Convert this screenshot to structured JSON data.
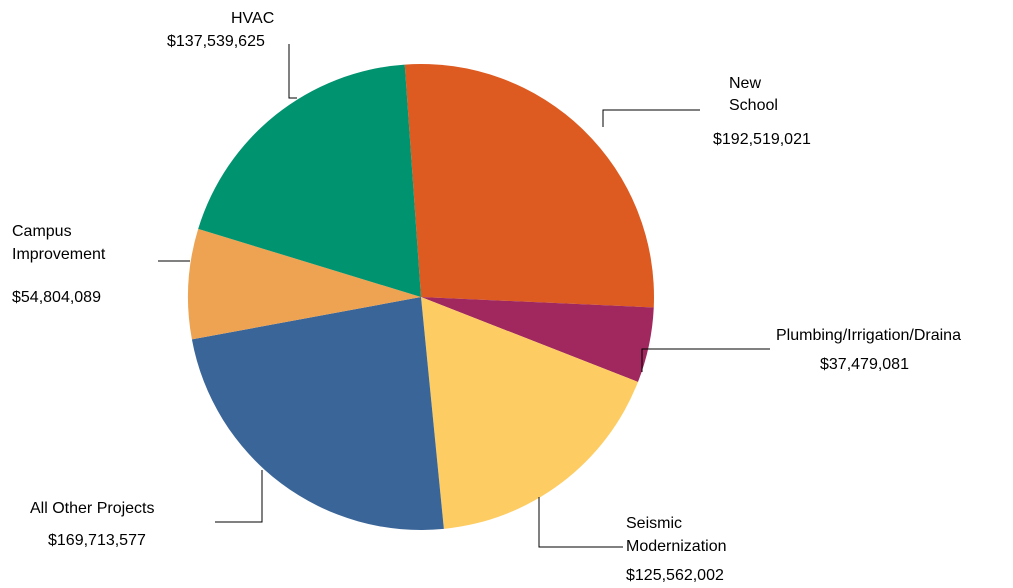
{
  "chart_data": {
    "type": "pie",
    "title": "",
    "slices": [
      {
        "label_lines": [
          "New",
          "School"
        ],
        "value_text": "$192,519,021",
        "value": 192519021,
        "color": "#DD5A20"
      },
      {
        "label_lines": [
          "Plumbing/Irrigation/Draina"
        ],
        "value_text": "$37,479,081",
        "value": 37479081,
        "color": "#A0285E"
      },
      {
        "label_lines": [
          "Seismic",
          "Modernization"
        ],
        "value_text": "$125,562,002",
        "value": 125562002,
        "color": "#FDCC62"
      },
      {
        "label_lines": [
          "All Other Projects"
        ],
        "value_text": "$169,713,577",
        "value": 169713577,
        "color": "#3A6599"
      },
      {
        "label_lines": [
          "Campus",
          "Improvement"
        ],
        "value_text": "$54,804,089",
        "value": 54804089,
        "color": "#EDA352"
      },
      {
        "label_lines": [
          "HVAC"
        ],
        "value_text": "$137,539,625",
        "value": 137539625,
        "color": "#00936F"
      }
    ]
  }
}
